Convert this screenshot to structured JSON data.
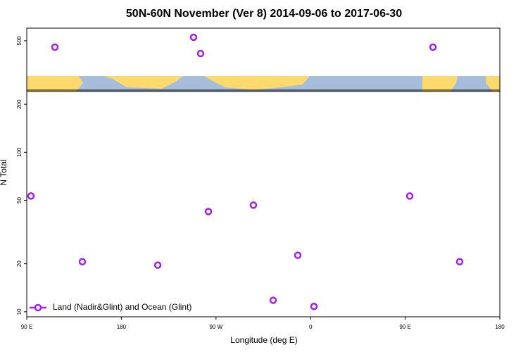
{
  "chart_data": {
    "type": "scatter",
    "title": "50N-60N November (Ver 8)   2014-09-06 to 2017-06-30",
    "x_label": "Longitude (deg E)",
    "y_label": "N Total",
    "log_y": true,
    "legend": "bottom-left",
    "xlim": [
      90,
      540
    ],
    "xticks": [
      {
        "value": 90,
        "label": "90 E"
      },
      {
        "value": 180,
        "label": "180"
      },
      {
        "value": 270,
        "label": "90 W"
      },
      {
        "value": 360,
        "label": "0"
      },
      {
        "value": 450,
        "label": "90 E"
      },
      {
        "value": 540,
        "label": "180"
      }
    ],
    "ylim": [
      9.3,
      600
    ],
    "yticks": [
      10,
      20,
      50,
      100,
      200,
      500
    ],
    "series": [
      {
        "name": "Land (Nadir&Glint) and Ocean (Glint)",
        "color": "#a020f0",
        "x": [
          94.0,
          116.8,
          142.9,
          214.6,
          248.7,
          255.4,
          262.8,
          305.6,
          324.4,
          347.8,
          363.2,
          454.3,
          476.4,
          501.8
        ],
        "values": [
          53.2,
          456,
          20.6,
          19.6,
          526,
          416,
          42.5,
          46.6,
          11.8,
          22.6,
          10.8,
          53.2,
          456,
          20.6
        ]
      }
    ]
  }
}
